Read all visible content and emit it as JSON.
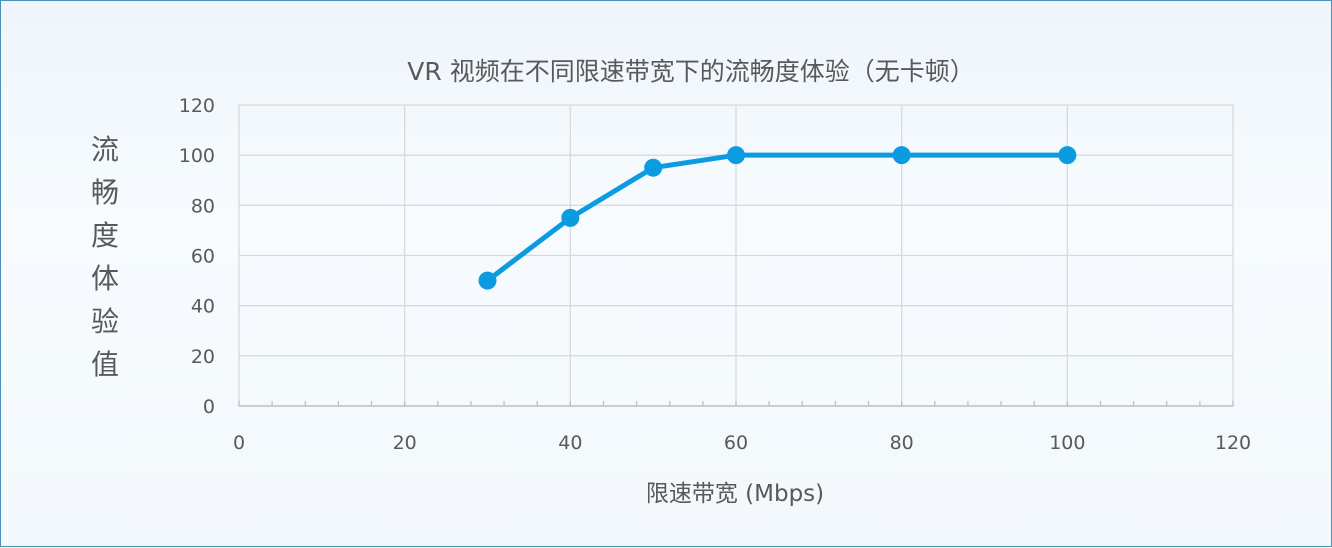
{
  "chart_data": {
    "type": "line",
    "title": "VR 视频在不同限速带宽下的流畅度体验（无卡顿）",
    "xlabel": "限速带宽 (Mbps)",
    "ylabel": "流畅度体验值",
    "xlim": [
      0,
      120
    ],
    "ylim": [
      0,
      120
    ],
    "x_ticks": [
      0,
      20,
      40,
      60,
      80,
      100,
      120
    ],
    "y_ticks": [
      0,
      20,
      40,
      60,
      80,
      100,
      120
    ],
    "grid": true,
    "series": [
      {
        "color": "#0a9be0",
        "x": [
          30,
          40,
          50,
          60,
          80,
          100
        ],
        "y": [
          50,
          75,
          95,
          100,
          100,
          100
        ]
      }
    ]
  }
}
